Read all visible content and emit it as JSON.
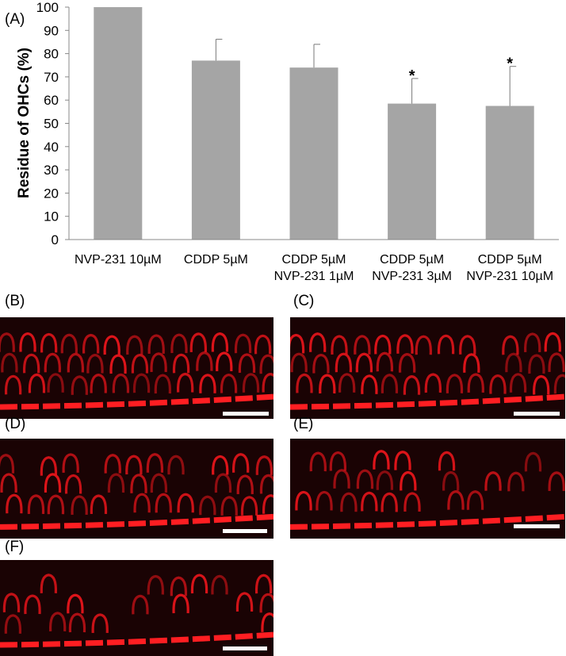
{
  "chart_data": {
    "type": "bar",
    "panel_label": "(A)",
    "ylabel": "Residue of OHCs (%)",
    "xlabel": "",
    "ylim": [
      0,
      100
    ],
    "yticks": [
      0,
      10,
      20,
      30,
      40,
      50,
      60,
      70,
      80,
      90,
      100
    ],
    "categories": [
      [
        "NVP-231 10µM"
      ],
      [
        "CDDP 5µM"
      ],
      [
        "CDDP 5µM",
        "NVP-231 1µM"
      ],
      [
        "CDDP 5µM",
        "NVP-231 3µM"
      ],
      [
        "CDDP 5µM",
        "NVP-231 10µM"
      ]
    ],
    "values": [
      100,
      77,
      74,
      58.5,
      57.5
    ],
    "error_upper": [
      0,
      9.2,
      10,
      10.8,
      17
    ],
    "significance": [
      "",
      "",
      "",
      "*",
      "*"
    ],
    "bar_color": "#a5a5a5",
    "grid": false,
    "legend": "none"
  },
  "image_panels": [
    {
      "label": "(B)",
      "image": "cochlea-ohc-fluorescence"
    },
    {
      "label": "(C)",
      "image": "cochlea-ohc-fluorescence"
    },
    {
      "label": "(D)",
      "image": "cochlea-ohc-fluorescence"
    },
    {
      "label": "(E)",
      "image": "cochlea-ohc-fluorescence"
    },
    {
      "label": "(F)",
      "image": "cochlea-ohc-fluorescence"
    }
  ],
  "colors": {
    "stain": "#e0141a",
    "background": "#1a0304",
    "scale_bar": "#ffffff"
  }
}
